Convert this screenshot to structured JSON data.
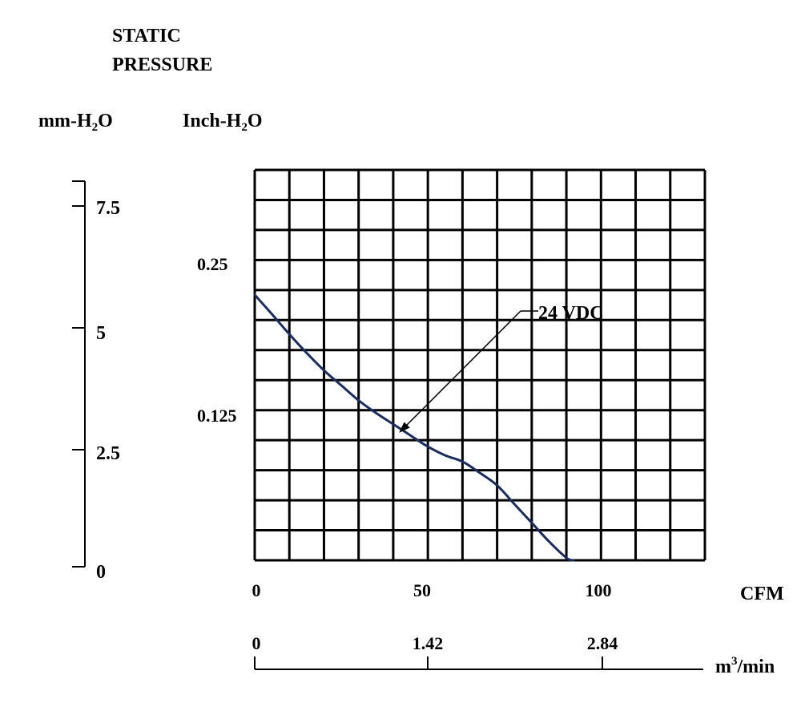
{
  "chart_data": {
    "type": "line",
    "title": "STATIC PRESSURE",
    "title_lines": [
      "STATIC",
      "PRESSURE"
    ],
    "left_axis": {
      "label_main": "mm-H",
      "label_sub": "2",
      "label_tail": "O",
      "ticks": [
        "0",
        "2.5",
        "5",
        "7.5"
      ],
      "range": [
        0,
        8
      ]
    },
    "y_axis": {
      "label_main": "Inch-H",
      "label_sub": "2",
      "label_tail": "O",
      "ticks": [
        "0.125",
        "0.25"
      ],
      "range": [
        0,
        0.3125
      ]
    },
    "x_axis": {
      "label": "CFM",
      "ticks": [
        "0",
        "50",
        "100"
      ],
      "range": [
        0,
        130
      ],
      "grid_columns": 13
    },
    "secondary_x_axis": {
      "label_main": "m",
      "label_sup": "3",
      "label_tail": "/min",
      "ticks": [
        "0",
        "1.42",
        "2.84"
      ]
    },
    "grid": true,
    "grid_rows": 13,
    "series": [
      {
        "name": "24 VDC",
        "color": "#1b2d5e",
        "x": [
          0,
          5,
          10,
          15,
          20,
          25,
          30,
          35,
          40,
          45,
          50,
          55,
          60,
          65,
          70,
          75,
          80,
          85,
          90,
          92
        ],
        "y": [
          0.2125,
          0.197,
          0.181,
          0.166,
          0.152,
          0.14,
          0.128,
          0.118,
          0.109,
          0.1,
          0.091,
          0.084,
          0.079,
          0.07,
          0.06,
          0.045,
          0.03,
          0.015,
          0.002,
          0
        ]
      }
    ],
    "annotation": {
      "text": "24 VDC",
      "target_x": 42,
      "target_y": 0.103
    }
  }
}
